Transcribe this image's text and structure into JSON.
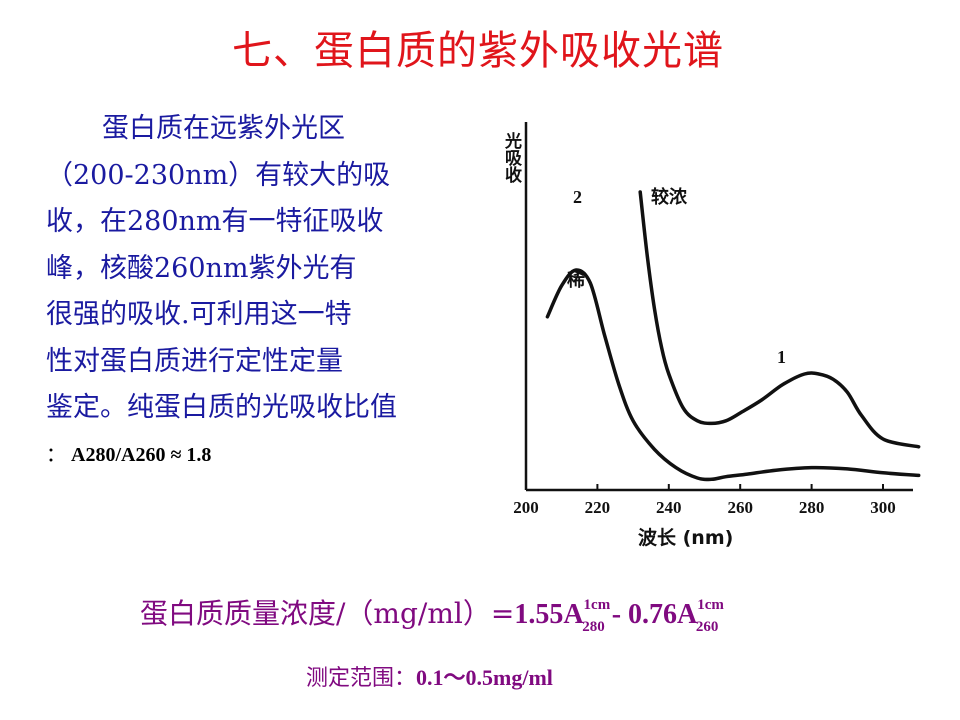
{
  "slide": {
    "title": "七、蛋白质的紫外吸收光谱",
    "body_lines": [
      "蛋白质在远紫外光区",
      "（200-230nm）有较大的吸",
      "收，在280nm有一特征吸收",
      "峰，核酸260nm紫外光有",
      "很强的吸收.可利用这一特",
      "性对蛋白质进行定性定量",
      "鉴定。纯蛋白质的光吸收比值"
    ],
    "ratio_prefix": "：",
    "ratio_value": "A280/A260 ≈ 1.8",
    "formula_label": "蛋白质质量浓度/（mg/ml）=",
    "formula_coef1": "1.55A",
    "formula_sup1": "1cm",
    "formula_sub1": "280",
    "formula_minus": " - ",
    "formula_coef2": "0.76A",
    "formula_sup2": "1cm",
    "formula_sub2": "260",
    "range_label": "测定范围：",
    "range_value": "0.1～0.5mg/ml"
  },
  "chart_data": {
    "type": "line",
    "ylabel": "光吸收",
    "xlabel": "波长 (nm)",
    "xlim": [
      200,
      320
    ],
    "x_ticks": [
      200,
      220,
      240,
      260,
      280,
      300
    ],
    "annotations": {
      "curve2_number": "2",
      "curve2_label": "稀",
      "curve1_number": "1",
      "curve1_label": "较浓"
    },
    "series": [
      {
        "id": "2",
        "x": [
          206,
          210,
          214,
          218,
          222,
          226,
          230,
          236,
          242,
          248,
          252,
          256,
          262,
          270,
          280,
          290,
          300,
          310
        ],
        "values": [
          0.62,
          0.74,
          0.8,
          0.75,
          0.55,
          0.36,
          0.22,
          0.11,
          0.04,
          0.0,
          -0.005,
          0.005,
          0.015,
          0.03,
          0.04,
          0.035,
          0.02,
          0.01
        ]
      },
      {
        "id": "1",
        "x": [
          232,
          234,
          236,
          238,
          240,
          244,
          248,
          252,
          256,
          260,
          266,
          272,
          278,
          282,
          286,
          290,
          294,
          300,
          310
        ],
        "values": [
          1.1,
          0.85,
          0.65,
          0.5,
          0.4,
          0.27,
          0.22,
          0.21,
          0.22,
          0.25,
          0.3,
          0.36,
          0.4,
          0.4,
          0.38,
          0.33,
          0.24,
          0.15,
          0.12
        ]
      }
    ]
  }
}
